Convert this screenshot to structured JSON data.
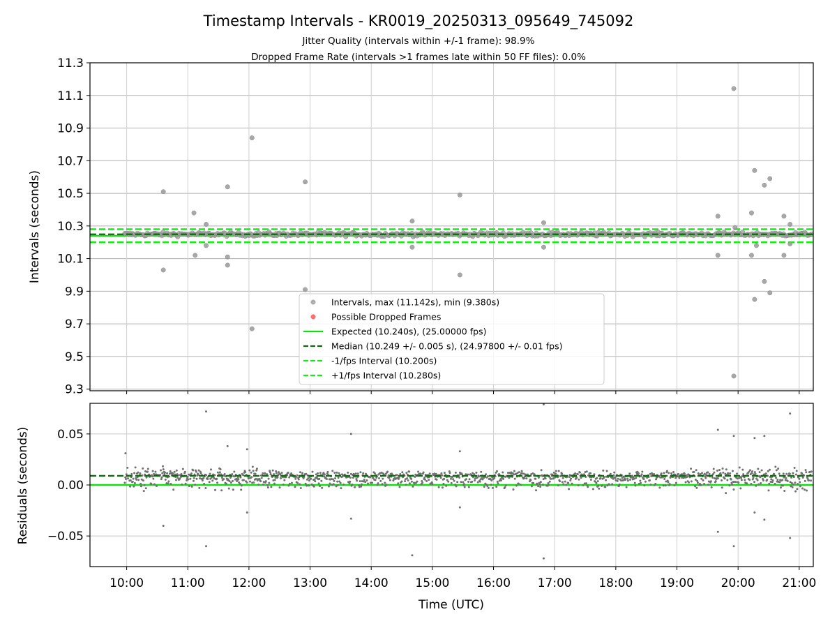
{
  "chart_data": [
    {
      "type": "scatter",
      "title": "Timestamp Intervals - KR0019_20250313_095649_745092",
      "subtitle_lines": [
        "Jitter Quality (intervals within +/-1 frame): 98.9%",
        "Dropped Frame Rate (intervals >1 frames late within 50 FF files): 0.0%"
      ],
      "xlabel": "",
      "ylabel": "Intervals (seconds)",
      "xlim": [
        9.4,
        21.23
      ],
      "ylim": [
        9.29,
        11.3
      ],
      "yticks": [
        "9.3",
        "9.5",
        "9.7",
        "9.9",
        "10.1",
        "10.3",
        "10.5",
        "10.7",
        "10.9",
        "11.1",
        "11.3"
      ],
      "grid": true,
      "legend": {
        "placement": "lower-center",
        "entries": [
          {
            "label": "Intervals, max (11.142s), min (9.380s)",
            "kind": "dot",
            "color": "#999999"
          },
          {
            "label": "Possible Dropped Frames",
            "kind": "dot",
            "color": "#ff4d4d"
          },
          {
            "label": "Expected (10.240s), (25.00000 fps)",
            "kind": "solid",
            "color": "#11dd11"
          },
          {
            "label": "Median (10.249 +/- 0.005 s), (24.97800 +/- 0.01 fps)",
            "kind": "dashed",
            "color": "#0a6b0a"
          },
          {
            "label": "-1/fps Interval (10.200s)",
            "kind": "dashed",
            "color": "#11ee11"
          },
          {
            "label": "+1/fps Interval (10.280s)",
            "kind": "dashed",
            "color": "#11ee11"
          }
        ]
      },
      "reference_lines": {
        "expected": 10.24,
        "median": 10.249,
        "minus_1_fps": 10.2,
        "plus_1_fps": 10.28
      },
      "band_range": [
        9.97,
        21.2
      ],
      "outliers": {
        "x": [
          10.6,
          10.6,
          11.1,
          11.12,
          11.3,
          11.3,
          11.65,
          11.65,
          11.65,
          12.05,
          12.05,
          12.92,
          12.92,
          14.67,
          14.67,
          15.45,
          15.45,
          16.82,
          16.82,
          19.67,
          19.67,
          19.93,
          19.93,
          20.22,
          20.22,
          20.27,
          20.27,
          20.43,
          20.43,
          20.52,
          20.52,
          20.75,
          20.75,
          20.85,
          20.85,
          19.95,
          20.3
        ],
        "y": [
          10.51,
          10.03,
          10.38,
          10.12,
          10.31,
          10.18,
          10.54,
          10.11,
          10.06,
          10.84,
          9.67,
          10.57,
          9.91,
          10.33,
          10.17,
          10.49,
          10.0,
          10.32,
          10.17,
          10.36,
          10.12,
          11.142,
          9.38,
          10.38,
          10.12,
          10.64,
          9.85,
          10.55,
          9.96,
          10.59,
          9.89,
          10.36,
          10.12,
          10.31,
          10.19,
          10.29,
          10.18
        ]
      },
      "series": [
        {
          "name": "Intervals, max (11.142s), min (9.380s)",
          "color": "#999999"
        },
        {
          "name": "Expected (10.240s), (25.00000 fps)",
          "color": "#11dd11"
        },
        {
          "name": "Median (10.249 +/- 0.005 s), (24.97800 +/- 0.01 fps)",
          "color": "#0a6b0a"
        }
      ]
    },
    {
      "type": "scatter",
      "xlabel": "Time (UTC)",
      "ylabel": "Residuals (seconds)",
      "xlim": [
        9.4,
        21.23
      ],
      "ylim": [
        -0.08,
        0.08
      ],
      "yticks": [
        "−0.05",
        "0.00",
        "0.05"
      ],
      "ytick_values": [
        -0.05,
        0.0,
        0.05
      ],
      "xticks": [
        "10:00",
        "11:00",
        "12:00",
        "13:00",
        "14:00",
        "15:00",
        "16:00",
        "17:00",
        "18:00",
        "19:00",
        "20:00",
        "21:00"
      ],
      "xtick_values": [
        10,
        11,
        12,
        13,
        14,
        15,
        16,
        17,
        18,
        19,
        20,
        21
      ],
      "grid": true,
      "reference_lines": {
        "median": 0.009,
        "expected": 0.0
      },
      "outliers": {
        "x": [
          9.98,
          10.6,
          11.3,
          11.3,
          11.65,
          11.97,
          11.97,
          13.67,
          13.67,
          14.67,
          15.45,
          15.45,
          16.82,
          16.82,
          19.67,
          19.67,
          19.93,
          19.93,
          20.27,
          20.27,
          20.43,
          20.43,
          20.85,
          20.85
        ],
        "y": [
          0.031,
          -0.04,
          0.072,
          -0.06,
          0.038,
          0.035,
          -0.027,
          0.05,
          -0.033,
          -0.069,
          0.033,
          -0.022,
          0.079,
          -0.072,
          0.054,
          -0.046,
          0.048,
          -0.06,
          0.046,
          -0.027,
          0.048,
          -0.034,
          0.07,
          -0.052
        ]
      },
      "series": [
        {
          "name": "Residuals",
          "color": "#777777"
        }
      ]
    }
  ]
}
